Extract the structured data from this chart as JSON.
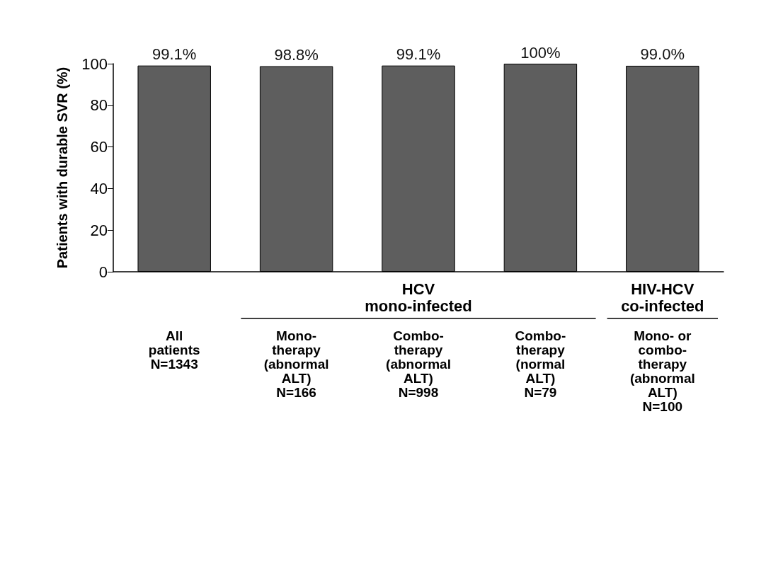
{
  "chart_data": {
    "type": "bar",
    "ylabel": "Patients with durable SVR (%)",
    "categories": [
      "All\npatients\nN=1343",
      "Mono-\ntherapy\n(abnormal\nALT)\nN=166",
      "Combo-\ntherapy\n(abnormal\nALT)\nN=998",
      "Combo-\ntherapy\n(normal\nALT)\nN=79",
      "Mono- or\ncombo-\ntherapy\n(abnormal\nALT)\nN=100"
    ],
    "values": [
      99.1,
      98.8,
      99.1,
      100,
      99.0
    ],
    "value_labels": [
      "99.1%",
      "98.8%",
      "99.1%",
      "100%",
      "99.0%"
    ],
    "color": "#5e5e5e",
    "ylim": [
      0,
      100
    ],
    "yticks": [
      0,
      20,
      40,
      60,
      80,
      100
    ],
    "grid": false,
    "annotations": [
      "HCV\nmono-infected",
      "HIV-HCV\nco-infected"
    ]
  }
}
